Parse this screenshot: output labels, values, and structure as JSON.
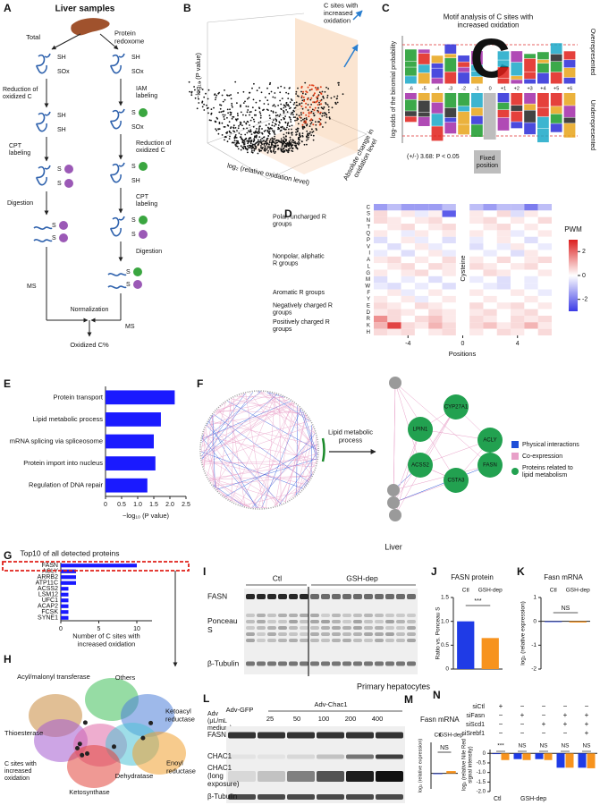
{
  "panel_labels": [
    "A",
    "B",
    "C",
    "D",
    "E",
    "F",
    "G",
    "H",
    "I",
    "J",
    "K",
    "L",
    "M",
    "N"
  ],
  "panel_a": {
    "title": "Liver samples",
    "total": "Total",
    "redoxome": "Protein redoxome",
    "sh": "SH",
    "sox": "SOx",
    "s": "S",
    "reduction": "Reduction of oxidized C",
    "iam": "IAM labeling",
    "cpt": "CPT labeling",
    "digestion": "Digestion",
    "ms": "MS",
    "normalization": "Normalization",
    "result": "Oxidized C%"
  },
  "panel_b": {
    "y_label": "−log₁₀ (P value)",
    "x_label": "log₂ (relative oxidation level)",
    "z_label": "Absolute change in oxidation level",
    "annotation": "C sites with increased oxidation"
  },
  "panel_c": {
    "title": "Motif analysis of C sites with increased oxidation",
    "y_label": "log-odds of the binomial probability",
    "top_label": "Overrepresented",
    "bottom_label": "Underrepresented",
    "threshold": "(+/-) 3.68: P < 0.05",
    "fixed": "Fixed position",
    "fixed_residue": "C",
    "positions": [
      "-6",
      "-5",
      "-4",
      "-3",
      "-2",
      "-1",
      "0",
      "+1",
      "+2",
      "+3",
      "+4",
      "+5",
      "+6"
    ]
  },
  "panel_d": {
    "type": "heatmap",
    "rows": [
      "C",
      "S",
      "N",
      "T",
      "Q",
      "P",
      "V",
      "I",
      "A",
      "L",
      "G",
      "M",
      "W",
      "F",
      "Y",
      "E",
      "D",
      "R",
      "K",
      "H"
    ],
    "groups": [
      "Polar, uncharged R groups",
      "Nonpolar, aliphatic R groups",
      "Aromatic R groups",
      "Negatively charged R groups",
      "Positively charged R groups"
    ],
    "x": [
      -6,
      -5,
      -4,
      -3,
      -2,
      -1,
      1,
      2,
      3,
      4,
      5,
      6
    ],
    "xlim": [
      -6.5,
      6.5
    ],
    "xticks": [
      -4,
      0,
      4
    ],
    "x_label": "Positions",
    "center_label": "Cysteine",
    "legend_title": "PWM",
    "colorbar_lim": [
      -3,
      3
    ],
    "colorbar_ticks": [
      2,
      0,
      -2
    ],
    "values": [
      [
        -1.5,
        -1,
        -1.5,
        -1.5,
        -1.5,
        -1,
        -1,
        -1.5,
        -1,
        -1,
        -2,
        -1
      ],
      [
        0.5,
        0,
        0.3,
        -0.3,
        0.2,
        -2.5,
        0.3,
        0,
        0.5,
        -0.5,
        0.3,
        0
      ],
      [
        0.5,
        0.3,
        0,
        0.3,
        0.5,
        0,
        0.3,
        0.5,
        0,
        0.3,
        0,
        0.5
      ],
      [
        0,
        0.3,
        0.5,
        0,
        0.3,
        0.5,
        0,
        0.3,
        0.5,
        0,
        0.3,
        0
      ],
      [
        0.3,
        0,
        -0.3,
        0.3,
        0,
        0.3,
        0.3,
        0,
        0.3,
        -0.3,
        0,
        0.3
      ],
      [
        -0.5,
        0,
        0.3,
        -0.3,
        0,
        -0.5,
        -0.3,
        0,
        0.3,
        0,
        -0.5,
        0
      ],
      [
        0,
        -0.5,
        0,
        0.3,
        -0.3,
        0,
        -0.5,
        0,
        -0.3,
        0.3,
        0,
        -0.3
      ],
      [
        -0.3,
        0,
        -0.5,
        0,
        0.3,
        -0.3,
        0,
        -0.3,
        0,
        -0.5,
        0.3,
        0
      ],
      [
        0.3,
        0.5,
        0,
        0.3,
        0,
        0.5,
        0.3,
        0,
        0.5,
        0,
        0.3,
        0.5
      ],
      [
        0,
        0.3,
        0.5,
        0,
        0.5,
        0.3,
        0.5,
        0.3,
        0,
        0.3,
        0.5,
        0
      ],
      [
        0.3,
        0,
        0.3,
        0.5,
        0,
        0.3,
        0,
        0.5,
        0.3,
        0,
        0,
        0.3
      ],
      [
        -0.5,
        0,
        -0.3,
        0,
        -0.5,
        0,
        -0.3,
        0,
        -0.5,
        0,
        -0.3,
        0
      ],
      [
        -0.3,
        -0.5,
        0,
        -0.3,
        0,
        -0.5,
        0,
        -0.3,
        -0.5,
        0,
        -0.3,
        0
      ],
      [
        0,
        0.3,
        -0.3,
        0,
        0.3,
        0,
        0.3,
        0,
        0,
        0.3,
        0,
        -0.3
      ],
      [
        0.3,
        0,
        0.3,
        -0.3,
        0,
        0.3,
        0,
        0.3,
        0,
        0,
        0.3,
        0
      ],
      [
        0.5,
        0.3,
        0,
        0.5,
        0.3,
        0,
        0.5,
        0,
        0.3,
        0.5,
        0,
        0.3
      ],
      [
        0.3,
        0.5,
        0.3,
        0,
        0.5,
        0.3,
        0.3,
        0.5,
        0,
        0.3,
        0.5,
        0
      ],
      [
        1.5,
        0.5,
        0,
        0.5,
        0.8,
        0.3,
        0.5,
        0.3,
        0,
        0.5,
        0.3,
        0.5
      ],
      [
        1,
        2.5,
        0.5,
        0.3,
        1,
        0.5,
        0.5,
        0.8,
        0.3,
        0.5,
        1,
        0.3
      ],
      [
        0.5,
        0.3,
        0.5,
        0,
        0.3,
        0.5,
        0.3,
        0,
        0.5,
        0.3,
        0,
        0.5
      ]
    ]
  },
  "panel_e": {
    "type": "bar",
    "orientation": "horizontal",
    "categories": [
      "Protein transport",
      "Lipid metabolic process",
      "mRNA splicing via spliceosome",
      "Protein import into nucleus",
      "Regulation of DNA repair"
    ],
    "values": [
      2.15,
      1.72,
      1.5,
      1.55,
      1.3
    ],
    "color": "#1a1aff",
    "xlim": [
      0,
      2.5
    ],
    "xticks": [
      0,
      0.5,
      {
        "value": 1,
        "label": "1.0"
      },
      1.5,
      {
        "value": 2,
        "label": "2.0"
      },
      2.5
    ],
    "x_label": "−log₁₀ (P value)"
  },
  "panel_f": {
    "process": "Lipid metabolic process",
    "legend": [
      "Physical interactions",
      "Co-expression",
      "Proteins related to lipid metabolism"
    ],
    "legend_colors": [
      "#1f4fd8",
      "#e8a0c8",
      "#22a150"
    ],
    "nodes": [
      "CYP27A1",
      "LPIN1",
      "ACLY",
      "ACSS2",
      "FASN",
      "CSTA3"
    ]
  },
  "panel_g": {
    "type": "bar",
    "orientation": "horizontal",
    "title": "Top10 of all detected proteins",
    "categories": [
      "FASN",
      "ACLY",
      "ARRB2",
      "ATP11C",
      "ACSS2",
      "LSM12",
      "UFC1",
      "ACAP2",
      "FCSK",
      "SYNE1"
    ],
    "values": [
      10,
      2,
      2,
      2,
      1,
      1,
      1,
      1,
      1,
      1
    ],
    "color": "#1a1aff",
    "xlim": [
      0,
      12
    ],
    "xticks": [
      0,
      5,
      10
    ],
    "x_label": "Number of C sites with increased oxidation"
  },
  "panel_h": {
    "domains": [
      "Acyl/malonyl transferase",
      "Others",
      "Ketoacyl reductase",
      "Thioesterase",
      "Dehydratase",
      "Enoyl reductase",
      "Ketosynthase"
    ],
    "annotation": "C sites with increased oxidation"
  },
  "panel_i": {
    "header": "Liver",
    "groups": [
      "Ctl",
      "GSH-dep"
    ],
    "rows": [
      "FASN",
      "Ponceau S",
      "β-Tubulin"
    ]
  },
  "panel_j": {
    "type": "bar",
    "title": "FASN protein",
    "categories": [
      "Ctl",
      "GSH-dep"
    ],
    "values": [
      1.0,
      0.65
    ],
    "colors": [
      "#1f3be6",
      "#f7931e"
    ],
    "ylim": [
      0,
      1.5
    ],
    "yticks": [
      0,
      0.5,
      {
        "value": 1,
        "label": "1.0"
      },
      1.5
    ],
    "y_label": "Ratio vs. Ponceau S",
    "significance": "***"
  },
  "panel_k": {
    "type": "bar",
    "title": "Fasn mRNA",
    "categories": [
      "Ctl",
      "GSH-dep"
    ],
    "values": [
      0,
      -0.05
    ],
    "colors": [
      "#1f3be6",
      "#f7931e"
    ],
    "ylim": [
      -2,
      1
    ],
    "yticks": [
      1,
      0,
      -1,
      -2
    ],
    "y_label": "log₂ (relative expression)",
    "significance": "NS"
  },
  "panel_l": {
    "header": "Primary hepatocytes",
    "adv_label": "Adv (μL/mL medium)",
    "gfp": "Adv-GFP",
    "chac1": "Adv-Chac1",
    "doses": [
      25,
      50,
      100,
      200,
      400
    ],
    "rows": [
      "FASN",
      "CHAC1",
      "CHAC1 (long exposure)",
      "β-Tubulin"
    ]
  },
  "panel_m": {
    "type": "bar",
    "title": "Fasn mRNA",
    "categories": [
      "Ctl",
      "GSH-dep"
    ],
    "values": [
      0,
      0.15
    ],
    "colors": [
      "#1f3be6",
      "#f7931e"
    ],
    "ylim": [
      -1,
      2
    ],
    "y_label": "log₂ (relative expression)",
    "significance": "NS"
  },
  "panel_n": {
    "type": "grouped_bar",
    "conditions": [
      {
        "name": "siCtl",
        "signs": [
          "+",
          "−",
          "−",
          "−",
          "−"
        ]
      },
      {
        "name": "siFasn",
        "signs": [
          "−",
          "+",
          "−",
          "+",
          "+"
        ]
      },
      {
        "name": "siScd1",
        "signs": [
          "−",
          "−",
          "+",
          "+",
          "+"
        ]
      },
      {
        "name": "siSrebf1",
        "signs": [
          "−",
          "−",
          "−",
          "−",
          "+"
        ]
      }
    ],
    "series": [
      {
        "name": "Ctl",
        "color": "#1f3be6",
        "values": [
          0,
          -0.3,
          -0.3,
          -0.75,
          -0.75
        ]
      },
      {
        "name": "GSH-dep",
        "color": "#f7931e",
        "values": [
          -0.35,
          -0.35,
          -0.35,
          -0.75,
          -0.78
        ]
      }
    ],
    "ylim": [
      -2,
      0.2
    ],
    "yticks": [
      0,
      -0.5,
      {
        "value": -1,
        "label": "-1.0"
      },
      -1.5,
      {
        "value": -2,
        "label": "-2.0"
      }
    ],
    "y_label": "log₂ (relative Nile Red signal intensity)",
    "significance": [
      "***",
      "NS",
      "NS",
      "NS",
      "NS"
    ]
  }
}
